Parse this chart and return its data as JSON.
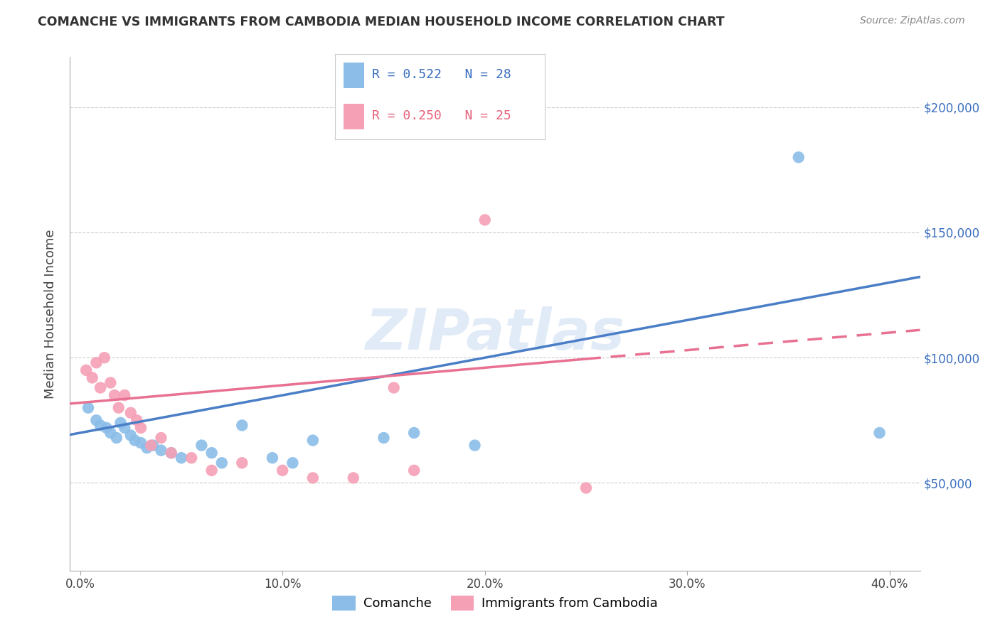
{
  "title": "COMANCHE VS IMMIGRANTS FROM CAMBODIA MEDIAN HOUSEHOLD INCOME CORRELATION CHART",
  "source": "Source: ZipAtlas.com",
  "ylabel": "Median Household Income",
  "xlabel_ticks": [
    "0.0%",
    "10.0%",
    "20.0%",
    "30.0%",
    "40.0%"
  ],
  "xlabel_vals": [
    0.0,
    0.1,
    0.2,
    0.3,
    0.4
  ],
  "ylabel_ticks": [
    "$50,000",
    "$100,000",
    "$150,000",
    "$200,000"
  ],
  "ylabel_vals": [
    50000,
    100000,
    150000,
    200000
  ],
  "xlim": [
    -0.005,
    0.415
  ],
  "ylim": [
    15000,
    220000
  ],
  "watermark": "ZIPatlas",
  "blue_R": 0.522,
  "blue_N": 28,
  "pink_R": 0.25,
  "pink_N": 25,
  "blue_color": "#8BBDE8",
  "pink_color": "#F5A0B5",
  "blue_line_color": "#4A7EC7",
  "pink_line_color": "#E87090",
  "blue_scatter_x": [
    0.004,
    0.008,
    0.01,
    0.013,
    0.015,
    0.018,
    0.02,
    0.022,
    0.025,
    0.027,
    0.03,
    0.033,
    0.036,
    0.04,
    0.045,
    0.05,
    0.06,
    0.065,
    0.07,
    0.08,
    0.095,
    0.105,
    0.115,
    0.15,
    0.165,
    0.195,
    0.355,
    0.395
  ],
  "blue_scatter_y": [
    80000,
    75000,
    73000,
    72000,
    70000,
    68000,
    74000,
    72000,
    69000,
    67000,
    66000,
    64000,
    65000,
    63000,
    62000,
    60000,
    65000,
    62000,
    58000,
    73000,
    60000,
    58000,
    67000,
    68000,
    70000,
    65000,
    180000,
    70000
  ],
  "pink_scatter_x": [
    0.003,
    0.006,
    0.008,
    0.01,
    0.012,
    0.015,
    0.017,
    0.019,
    0.022,
    0.025,
    0.028,
    0.03,
    0.035,
    0.04,
    0.045,
    0.055,
    0.065,
    0.08,
    0.1,
    0.115,
    0.135,
    0.155,
    0.165,
    0.2,
    0.25
  ],
  "pink_scatter_y": [
    95000,
    92000,
    98000,
    88000,
    100000,
    90000,
    85000,
    80000,
    85000,
    78000,
    75000,
    72000,
    65000,
    68000,
    62000,
    60000,
    55000,
    58000,
    55000,
    52000,
    52000,
    88000,
    55000,
    155000,
    48000
  ],
  "legend_label_blue": "Comanche",
  "legend_label_pink": "Immigrants from Cambodia",
  "background_color": "#FFFFFF",
  "grid_color": "#CCCCCC"
}
